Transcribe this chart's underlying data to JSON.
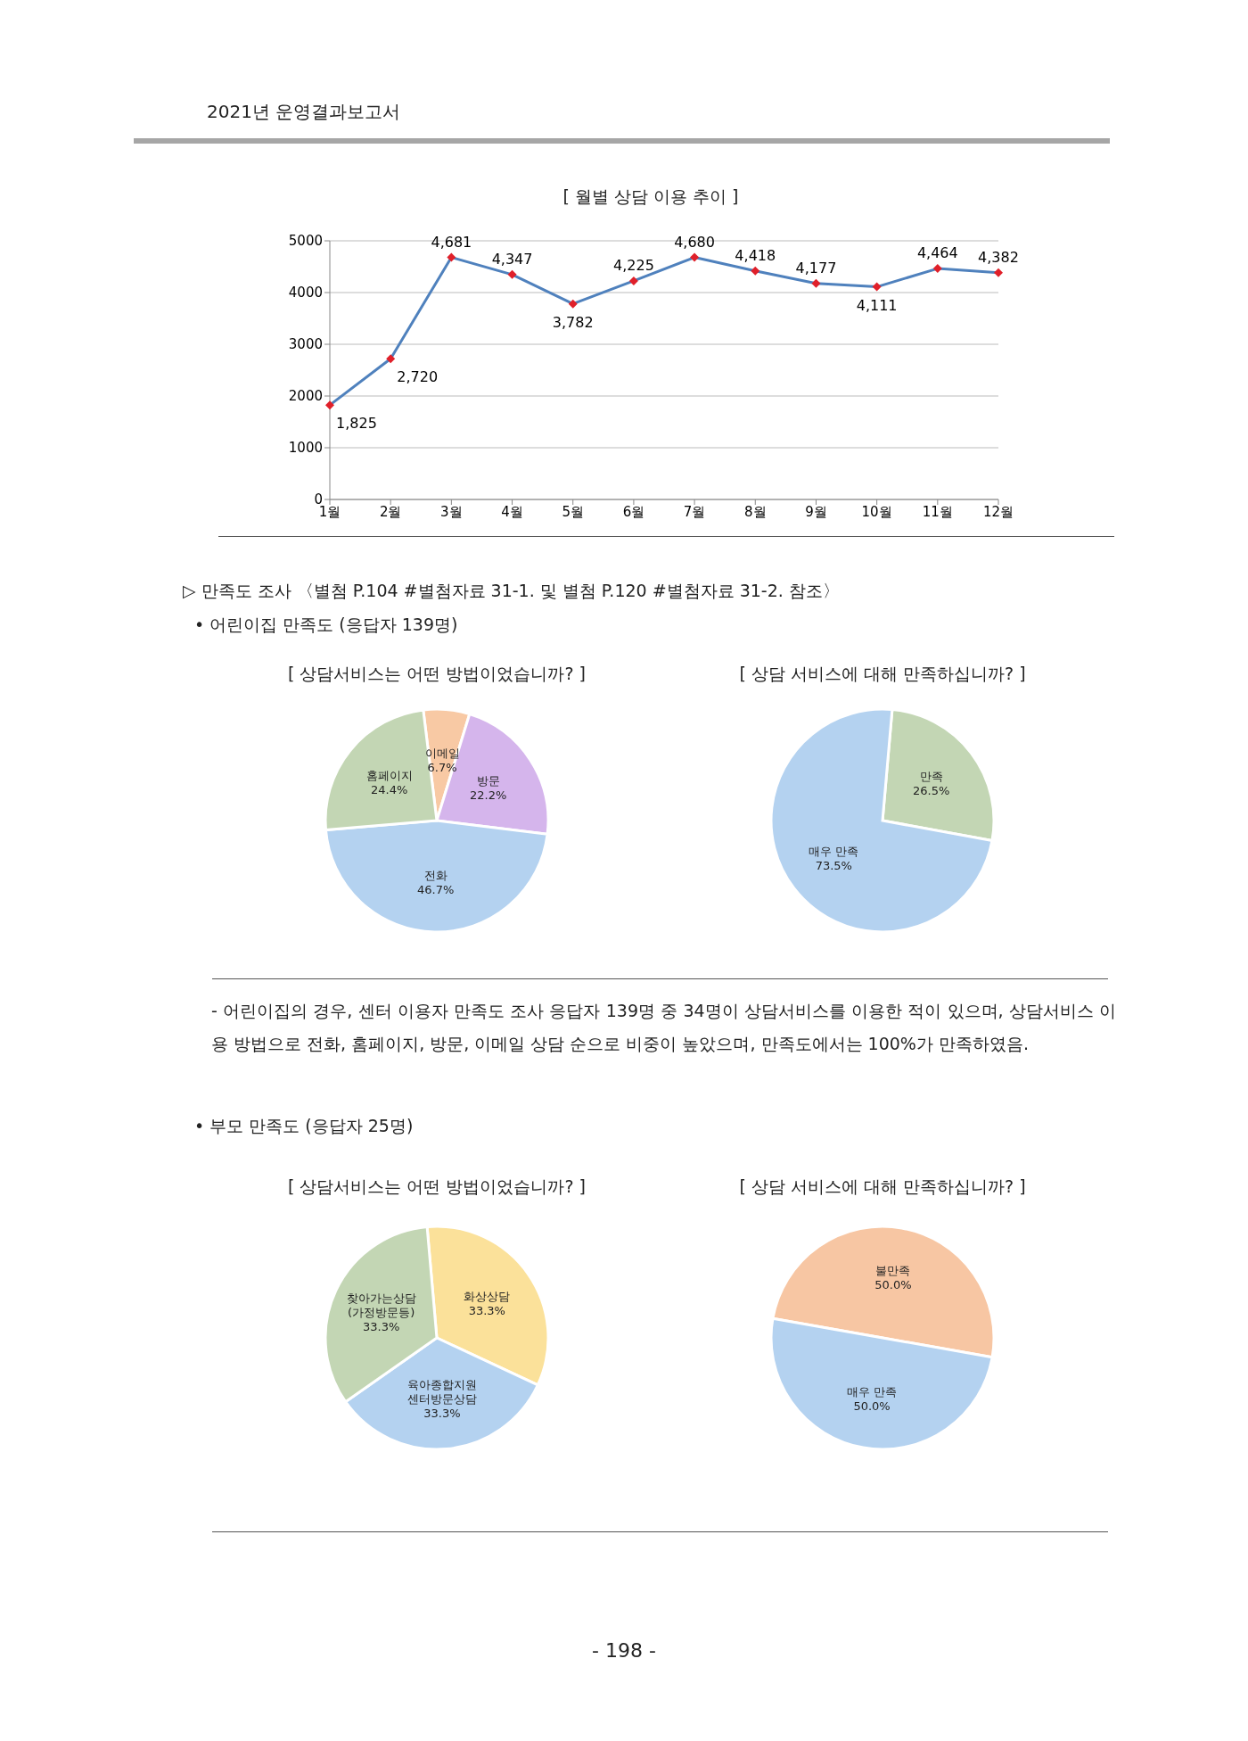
{
  "chart_data": [
    {
      "type": "line",
      "title": "[ 월별 상담 이용 추이 ]",
      "annotations": [
        "2021년 운영결과보고서"
      ],
      "categories": [
        "1월",
        "2월",
        "3월",
        "4월",
        "5월",
        "6월",
        "7월",
        "8월",
        "9월",
        "10월",
        "11월",
        "12월"
      ],
      "series": [
        {
          "color": "#4f81bd",
          "values": [
            1825,
            2720,
            4681,
            4347,
            3782,
            4225,
            4680,
            4418,
            4177,
            4111,
            4464,
            4382
          ],
          "value_labels": [
            "1,825",
            "2,720",
            "4,681",
            "4,347",
            "3,782",
            "4,225",
            "4,680",
            "4,418",
            "4,177",
            "4,111",
            "4,464",
            "4,382"
          ]
        }
      ],
      "marker": "diamond",
      "line_style": "solid",
      "ylim": [
        0,
        5000
      ],
      "yticks": [
        0,
        1000,
        2000,
        3000,
        4000,
        5000
      ],
      "grid": "y"
    },
    {
      "type": "pie",
      "title": "[ 상담서비스는 어떤 방법이었습니까? ]",
      "annotations": [
        "▷ 만족도 조사 〈별첨 P.104 #별첨자료 31-1. 및 별첨 P.120 #별첨자료 31-2. 참조〉",
        "• 어린이집 만족도 (응답자 139명)"
      ],
      "categories": [
        "이메일",
        "방문",
        "전화",
        "홈페이지"
      ],
      "values": [
        6.7,
        22.2,
        46.7,
        24.4
      ],
      "value_labels": [
        "6.7%",
        "22.2%",
        "46.7%",
        "24.4%"
      ],
      "colors": [
        "#f8c9a4",
        "#d5b5ec",
        "#b4d2f0",
        "#c3d6b4"
      ]
    },
    {
      "type": "pie",
      "title": "[ 상담 서비스에 대해 만족하십니까? ]",
      "annotations": [
        "- 어린이집의 경우, 센터 이용자 만족도 조사 응답자 139명 중 34명이 상담서비스를 이용한 적이 있으며, 상담서비스 이용 방법으로 전화, 홈페이지, 방문, 이메일 상담 순으로 비중이 높았으며, 만족도에서는 100%가 만족하였음."
      ],
      "categories": [
        "만족",
        "매우 만족"
      ],
      "values": [
        26.5,
        73.5
      ],
      "value_labels": [
        "26.5%",
        "73.5%"
      ],
      "colors": [
        "#c3d6b4",
        "#b4d2f0"
      ]
    },
    {
      "type": "pie",
      "title": "[ 상담서비스는 어떤 방법이었습니까? ]",
      "annotations": [
        "• 부모 만족도 (응답자 25명)"
      ],
      "categories": [
        "화상상담",
        "육아종합지원\n센터방문상담",
        "찾아가는상담\n(가정방문등)"
      ],
      "values": [
        33.3,
        33.3,
        33.3
      ],
      "value_labels": [
        "33.3%",
        "33.3%",
        "33.3%"
      ],
      "colors": [
        "#fbe19a",
        "#b4d2f0",
        "#c3d6b4"
      ]
    },
    {
      "type": "pie",
      "title": "[ 상담 서비스에 대해 만족하십니까? ]",
      "annotations": [
        "- 198 -"
      ],
      "categories": [
        "불만족",
        "매우 만족"
      ],
      "values": [
        50.0,
        50.0
      ],
      "value_labels": [
        "50.0%",
        "50.0%"
      ],
      "colors": [
        "#f7c6a3",
        "#b4d2f0"
      ]
    }
  ]
}
